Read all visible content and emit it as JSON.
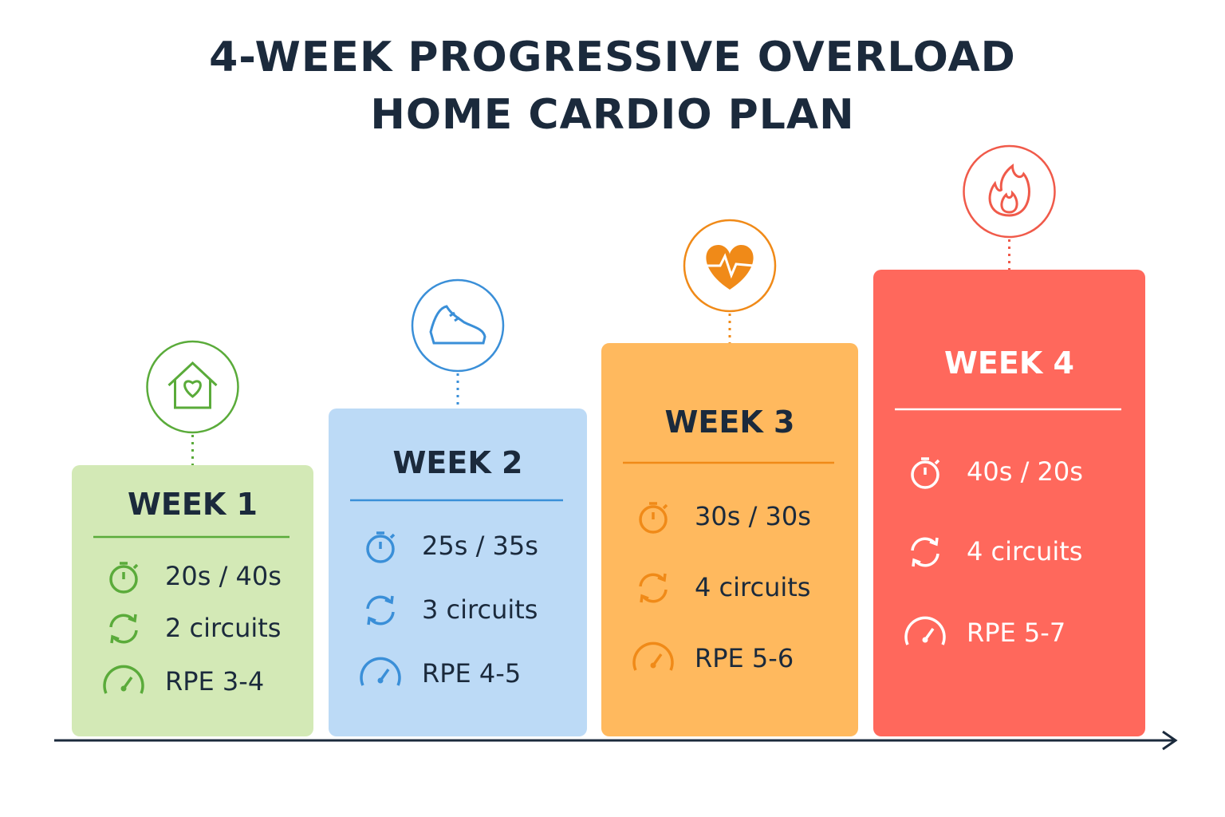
{
  "title": [
    "4-WEEK PROGRESSIVE OVERLOAD",
    "HOME CARDIO PLAN"
  ],
  "weeks": [
    {
      "label": "WEEK 1",
      "interval": "20s / 40s",
      "circuits": "2 circuits",
      "rpe": "RPE 3-4"
    },
    {
      "label": "WEEK 2",
      "interval": "25s / 35s",
      "circuits": "3 circuits",
      "rpe": "RPE 4-5"
    },
    {
      "label": "WEEK 3",
      "interval": "30s / 30s",
      "circuits": "4 circuits",
      "rpe": "RPE 5-6"
    },
    {
      "label": "WEEK 4",
      "interval": "40s / 20s",
      "circuits": "4 circuits",
      "rpe": "RPE 5-7"
    }
  ]
}
